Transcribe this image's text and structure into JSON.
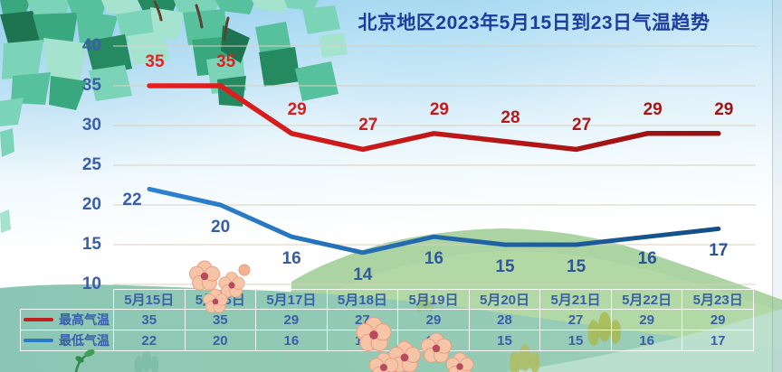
{
  "chart_data": {
    "type": "line",
    "title": "北京地区2023年5月15日到23日气温趋势",
    "categories": [
      "5月15日",
      "5月16日",
      "5月17日",
      "5月18日",
      "5月19日",
      "5月20日",
      "5月21日",
      "5月22日",
      "5月23日"
    ],
    "series": [
      {
        "name": "最高气温",
        "values": [
          35,
          35,
          29,
          27,
          29,
          28,
          27,
          29,
          29
        ],
        "line_color_start": "#ef2020",
        "line_color_end": "#8f1010",
        "label_color_start": "#e62222",
        "label_color_end": "#9c1414",
        "legend_color": "#c41f1f"
      },
      {
        "name": "最低气温",
        "values": [
          22,
          20,
          16,
          14,
          16,
          15,
          15,
          16,
          17
        ],
        "line_color_start": "#2f86d6",
        "line_color_end": "#134a80",
        "label_color_start": "#3a5fa8",
        "label_color_end": "#2a5290",
        "legend_color": "#2b7ac2"
      }
    ],
    "y_ticks": [
      40,
      35,
      30,
      25,
      20,
      15,
      10
    ],
    "ylim": [
      10,
      40
    ],
    "grid": true,
    "legend_position": "bottom-table-left"
  },
  "colors": {
    "title": "#1c3da0",
    "axis_text": "#3a5fa8",
    "table_text": "#3a5fa8",
    "grid_line": "#d8d0c0"
  }
}
